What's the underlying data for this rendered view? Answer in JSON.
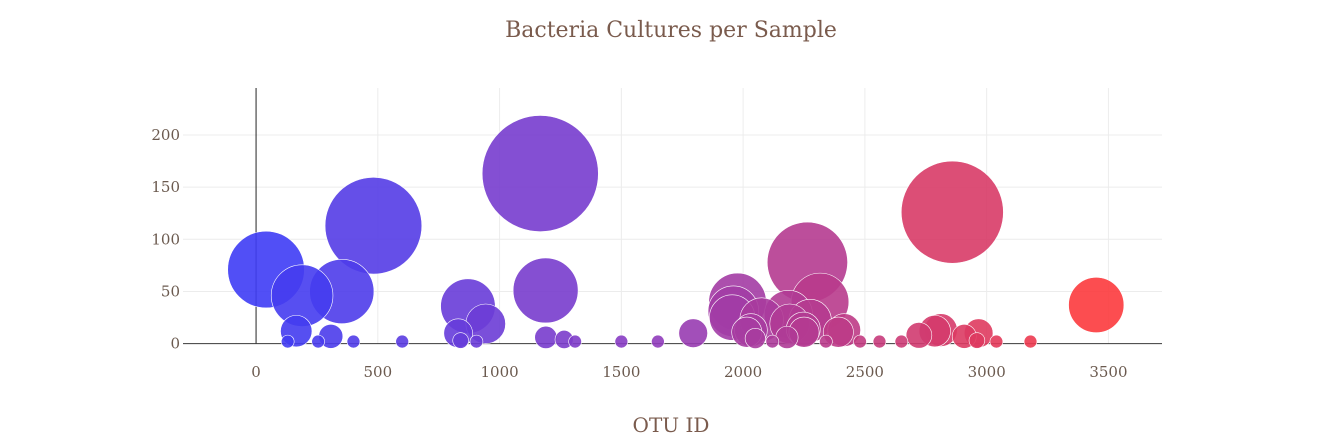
{
  "chart_data": {
    "type": "scatter",
    "title": "Bacteria Cultures per Sample",
    "xlabel": "OTU ID",
    "ylabel": "",
    "xlim": [
      -300,
      3720
    ],
    "ylim": [
      -8,
      245
    ],
    "x_ticks": [
      0,
      500,
      1000,
      1500,
      2000,
      2500,
      3000,
      3500
    ],
    "y_ticks": [
      0,
      50,
      100,
      150,
      200
    ],
    "grid": true,
    "color_scale": {
      "low": "#3c3cf6",
      "mid": "#8b3cc0",
      "high": "#ff3a3a"
    },
    "points": [
      {
        "x": 41,
        "y": 71,
        "size": 71
      },
      {
        "x": 189,
        "y": 46,
        "size": 46
      },
      {
        "x": 352,
        "y": 50,
        "size": 50
      },
      {
        "x": 482,
        "y": 113,
        "size": 113
      },
      {
        "x": 165,
        "y": 12,
        "size": 12
      },
      {
        "x": 307,
        "y": 7,
        "size": 7
      },
      {
        "x": 870,
        "y": 36,
        "size": 36
      },
      {
        "x": 943,
        "y": 19,
        "size": 19
      },
      {
        "x": 830,
        "y": 10,
        "size": 10
      },
      {
        "x": 1167,
        "y": 163,
        "size": 163
      },
      {
        "x": 1189,
        "y": 51,
        "size": 51
      },
      {
        "x": 1190,
        "y": 6,
        "size": 6
      },
      {
        "x": 1795,
        "y": 10,
        "size": 10
      },
      {
        "x": 1977,
        "y": 40,
        "size": 40
      },
      {
        "x": 1960,
        "y": 31,
        "size": 31
      },
      {
        "x": 1955,
        "y": 25,
        "size": 25
      },
      {
        "x": 2032,
        "y": 13,
        "size": 13
      },
      {
        "x": 2015,
        "y": 11,
        "size": 11
      },
      {
        "x": 2076,
        "y": 23,
        "size": 23
      },
      {
        "x": 2186,
        "y": 28,
        "size": 28
      },
      {
        "x": 2191,
        "y": 19,
        "size": 19
      },
      {
        "x": 2264,
        "y": 78,
        "size": 78
      },
      {
        "x": 2316,
        "y": 40,
        "size": 40
      },
      {
        "x": 2275,
        "y": 22,
        "size": 22
      },
      {
        "x": 2247,
        "y": 14,
        "size": 14
      },
      {
        "x": 2250,
        "y": 11,
        "size": 11
      },
      {
        "x": 2391,
        "y": 11,
        "size": 11
      },
      {
        "x": 2415,
        "y": 13,
        "size": 13
      },
      {
        "x": 2859,
        "y": 126,
        "size": 126
      },
      {
        "x": 2787,
        "y": 12,
        "size": 12
      },
      {
        "x": 2812,
        "y": 13,
        "size": 13
      },
      {
        "x": 2722,
        "y": 8,
        "size": 8
      },
      {
        "x": 2908,
        "y": 7,
        "size": 7
      },
      {
        "x": 2967,
        "y": 10,
        "size": 10
      },
      {
        "x": 3450,
        "y": 37,
        "size": 37
      },
      {
        "x": 2180,
        "y": 6,
        "size": 6
      },
      {
        "x": 2050,
        "y": 5,
        "size": 5
      },
      {
        "x": 1265,
        "y": 4,
        "size": 4
      },
      {
        "x": 840,
        "y": 3,
        "size": 3
      },
      {
        "x": 2960,
        "y": 3,
        "size": 3
      },
      {
        "x": 130,
        "y": 2,
        "size": 2
      },
      {
        "x": 255,
        "y": 2,
        "size": 2
      },
      {
        "x": 400,
        "y": 2,
        "size": 2
      },
      {
        "x": 600,
        "y": 2,
        "size": 2
      },
      {
        "x": 905,
        "y": 2,
        "size": 2
      },
      {
        "x": 1310,
        "y": 2,
        "size": 2
      },
      {
        "x": 1500,
        "y": 2,
        "size": 2
      },
      {
        "x": 1650,
        "y": 2,
        "size": 2
      },
      {
        "x": 2120,
        "y": 2,
        "size": 2
      },
      {
        "x": 2340,
        "y": 2,
        "size": 2
      },
      {
        "x": 2480,
        "y": 2,
        "size": 2
      },
      {
        "x": 2560,
        "y": 2,
        "size": 2
      },
      {
        "x": 2650,
        "y": 2,
        "size": 2
      },
      {
        "x": 3040,
        "y": 2,
        "size": 2
      },
      {
        "x": 3180,
        "y": 2,
        "size": 2
      }
    ]
  }
}
